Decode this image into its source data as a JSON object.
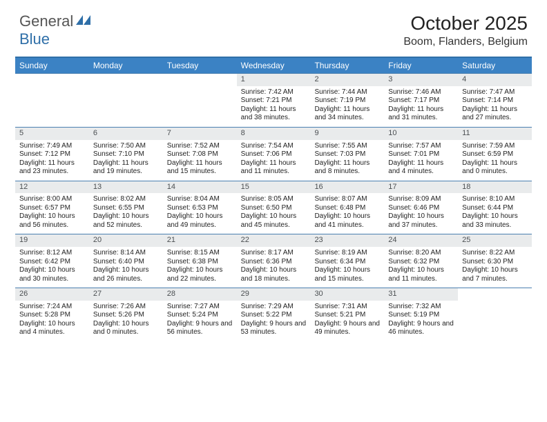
{
  "logo": {
    "word1": "General",
    "word2": "Blue"
  },
  "title": "October 2025",
  "location": "Boom, Flanders, Belgium",
  "colors": {
    "header_bar": "#3b82c4",
    "rule": "#2f6fa8",
    "daynum_bg": "#e9ebec",
    "text": "#222222"
  },
  "days_of_week": [
    "Sunday",
    "Monday",
    "Tuesday",
    "Wednesday",
    "Thursday",
    "Friday",
    "Saturday"
  ],
  "weeks": [
    [
      null,
      null,
      null,
      {
        "n": "1",
        "sr": "7:42 AM",
        "ss": "7:21 PM",
        "dl": "11 hours and 38 minutes."
      },
      {
        "n": "2",
        "sr": "7:44 AM",
        "ss": "7:19 PM",
        "dl": "11 hours and 34 minutes."
      },
      {
        "n": "3",
        "sr": "7:46 AM",
        "ss": "7:17 PM",
        "dl": "11 hours and 31 minutes."
      },
      {
        "n": "4",
        "sr": "7:47 AM",
        "ss": "7:14 PM",
        "dl": "11 hours and 27 minutes."
      }
    ],
    [
      {
        "n": "5",
        "sr": "7:49 AM",
        "ss": "7:12 PM",
        "dl": "11 hours and 23 minutes."
      },
      {
        "n": "6",
        "sr": "7:50 AM",
        "ss": "7:10 PM",
        "dl": "11 hours and 19 minutes."
      },
      {
        "n": "7",
        "sr": "7:52 AM",
        "ss": "7:08 PM",
        "dl": "11 hours and 15 minutes."
      },
      {
        "n": "8",
        "sr": "7:54 AM",
        "ss": "7:06 PM",
        "dl": "11 hours and 11 minutes."
      },
      {
        "n": "9",
        "sr": "7:55 AM",
        "ss": "7:03 PM",
        "dl": "11 hours and 8 minutes."
      },
      {
        "n": "10",
        "sr": "7:57 AM",
        "ss": "7:01 PM",
        "dl": "11 hours and 4 minutes."
      },
      {
        "n": "11",
        "sr": "7:59 AM",
        "ss": "6:59 PM",
        "dl": "11 hours and 0 minutes."
      }
    ],
    [
      {
        "n": "12",
        "sr": "8:00 AM",
        "ss": "6:57 PM",
        "dl": "10 hours and 56 minutes."
      },
      {
        "n": "13",
        "sr": "8:02 AM",
        "ss": "6:55 PM",
        "dl": "10 hours and 52 minutes."
      },
      {
        "n": "14",
        "sr": "8:04 AM",
        "ss": "6:53 PM",
        "dl": "10 hours and 49 minutes."
      },
      {
        "n": "15",
        "sr": "8:05 AM",
        "ss": "6:50 PM",
        "dl": "10 hours and 45 minutes."
      },
      {
        "n": "16",
        "sr": "8:07 AM",
        "ss": "6:48 PM",
        "dl": "10 hours and 41 minutes."
      },
      {
        "n": "17",
        "sr": "8:09 AM",
        "ss": "6:46 PM",
        "dl": "10 hours and 37 minutes."
      },
      {
        "n": "18",
        "sr": "8:10 AM",
        "ss": "6:44 PM",
        "dl": "10 hours and 33 minutes."
      }
    ],
    [
      {
        "n": "19",
        "sr": "8:12 AM",
        "ss": "6:42 PM",
        "dl": "10 hours and 30 minutes."
      },
      {
        "n": "20",
        "sr": "8:14 AM",
        "ss": "6:40 PM",
        "dl": "10 hours and 26 minutes."
      },
      {
        "n": "21",
        "sr": "8:15 AM",
        "ss": "6:38 PM",
        "dl": "10 hours and 22 minutes."
      },
      {
        "n": "22",
        "sr": "8:17 AM",
        "ss": "6:36 PM",
        "dl": "10 hours and 18 minutes."
      },
      {
        "n": "23",
        "sr": "8:19 AM",
        "ss": "6:34 PM",
        "dl": "10 hours and 15 minutes."
      },
      {
        "n": "24",
        "sr": "8:20 AM",
        "ss": "6:32 PM",
        "dl": "10 hours and 11 minutes."
      },
      {
        "n": "25",
        "sr": "8:22 AM",
        "ss": "6:30 PM",
        "dl": "10 hours and 7 minutes."
      }
    ],
    [
      {
        "n": "26",
        "sr": "7:24 AM",
        "ss": "5:28 PM",
        "dl": "10 hours and 4 minutes."
      },
      {
        "n": "27",
        "sr": "7:26 AM",
        "ss": "5:26 PM",
        "dl": "10 hours and 0 minutes."
      },
      {
        "n": "28",
        "sr": "7:27 AM",
        "ss": "5:24 PM",
        "dl": "9 hours and 56 minutes."
      },
      {
        "n": "29",
        "sr": "7:29 AM",
        "ss": "5:22 PM",
        "dl": "9 hours and 53 minutes."
      },
      {
        "n": "30",
        "sr": "7:31 AM",
        "ss": "5:21 PM",
        "dl": "9 hours and 49 minutes."
      },
      {
        "n": "31",
        "sr": "7:32 AM",
        "ss": "5:19 PM",
        "dl": "9 hours and 46 minutes."
      },
      null
    ]
  ],
  "labels": {
    "sunrise": "Sunrise:",
    "sunset": "Sunset:",
    "daylight": "Daylight:"
  }
}
